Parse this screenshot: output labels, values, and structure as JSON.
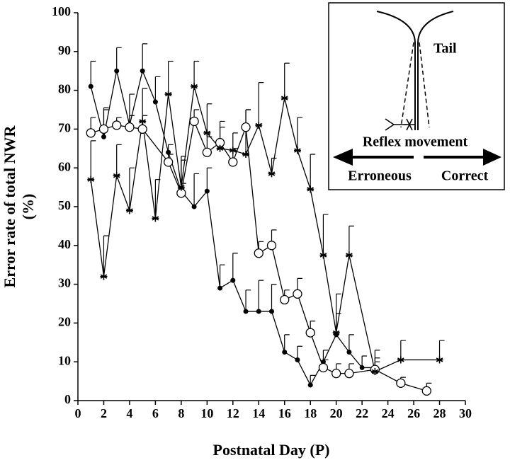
{
  "chart_data": {
    "type": "line",
    "x_label": "Postnatal Day (P)",
    "y_label": [
      "Error rate of total NWR",
      "(%)"
    ],
    "xlim": [
      0,
      30
    ],
    "xticks": [
      0,
      2,
      4,
      6,
      8,
      10,
      12,
      14,
      16,
      18,
      20,
      22,
      24,
      26,
      28,
      30
    ],
    "ylim": [
      0,
      100
    ],
    "yticks": [
      0,
      10,
      20,
      30,
      40,
      50,
      60,
      70,
      80,
      90,
      100
    ],
    "error_bars": "upper",
    "series": [
      {
        "marker": "filled-circle",
        "color": "#000000",
        "x": [
          1,
          2,
          3,
          4,
          5,
          6,
          7,
          8,
          9,
          10,
          11,
          12,
          13,
          14,
          15,
          16,
          17,
          18,
          19,
          20,
          21,
          22,
          23
        ],
        "values": [
          81,
          68,
          85,
          71,
          85,
          77,
          64,
          54,
          50,
          54,
          29,
          31,
          23,
          23,
          23,
          12.5,
          10.5,
          4,
          10,
          17,
          12.5,
          8.5,
          8.5
        ],
        "errors": [
          6.5,
          7.5,
          6,
          8,
          7,
          6.5,
          2,
          8,
          8.5,
          6,
          6,
          7,
          5.5,
          8,
          7,
          4.5,
          3.5,
          2.5,
          3,
          5.5,
          4.5,
          3,
          2.5
        ]
      },
      {
        "marker": "open-circle",
        "color": "#000000",
        "x": [
          1,
          2,
          3,
          4,
          5,
          7,
          8,
          9,
          10,
          11,
          12,
          13,
          14,
          15,
          16,
          17,
          18,
          19,
          20,
          21,
          23,
          25,
          27
        ],
        "values": [
          69,
          70,
          71,
          70.5,
          70,
          61.5,
          53.5,
          72,
          64,
          66.5,
          61.5,
          70.5,
          38,
          40,
          26,
          27.5,
          17.5,
          8.5,
          7,
          7,
          8,
          4.5,
          2.5
        ],
        "errors": [
          4,
          5,
          2,
          3,
          3.5,
          2,
          2.5,
          3,
          4,
          4,
          3.5,
          4.5,
          3,
          4,
          2.5,
          4,
          3,
          2,
          2.5,
          2.5,
          2,
          1.5,
          2
        ]
      },
      {
        "marker": "asterisk",
        "color": "#000000",
        "x": [
          1,
          2,
          3,
          4,
          5,
          6,
          7,
          8,
          9,
          10,
          11,
          12,
          13,
          14,
          15,
          16,
          17,
          18,
          19,
          20,
          21,
          23,
          25,
          28
        ],
        "values": [
          57,
          32,
          58,
          49,
          72,
          47,
          79,
          55,
          81,
          69,
          65,
          64.5,
          63.5,
          71,
          58.5,
          78,
          64.5,
          54.5,
          37.5,
          17.5,
          37.5,
          7.5,
          10.5,
          10.5
        ],
        "errors": [
          10,
          10.5,
          8,
          11,
          8.5,
          10,
          8.5,
          8,
          6.5,
          7.5,
          7,
          4.5,
          11.5,
          11,
          4,
          9,
          8.5,
          9,
          10.5,
          10,
          7.5,
          5.5,
          5,
          5
        ]
      }
    ],
    "inset": {
      "texts": [
        "Tail",
        "Reflex movement",
        "Erroneous",
        "Correct"
      ]
    }
  }
}
